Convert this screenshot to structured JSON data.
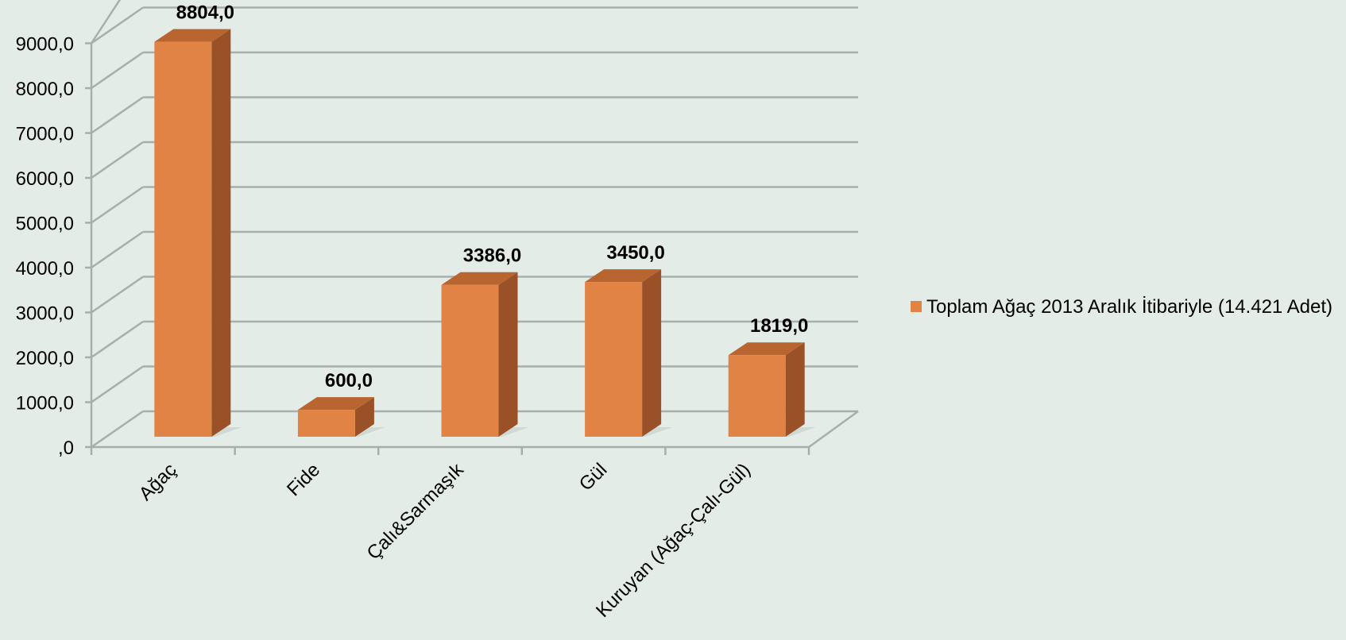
{
  "chart_data": {
    "type": "bar",
    "categories": [
      "Ağaç",
      "Fide",
      "Çalı&Sarmaşık",
      "Gül",
      "Kuruyan (Ağaç-Çalı-Gül)"
    ],
    "series": [
      {
        "name": "Toplam Ağaç 2013 Aralık İtibariyle (14.421 Adet)",
        "values": [
          8804.0,
          600.0,
          3386.0,
          3450.0,
          1819.0
        ],
        "value_labels": [
          "8804,0",
          "600,0",
          "3386,0",
          "3450,0",
          "1819,0"
        ],
        "color": "#e08345"
      }
    ],
    "yticks": [
      0,
      1000,
      2000,
      3000,
      4000,
      5000,
      6000,
      7000,
      8000,
      9000
    ],
    "ytick_labels": [
      ",0",
      "1000,0",
      "2000,0",
      "3000,0",
      "4000,0",
      "5000,0",
      "6000,0",
      "7000,0",
      "8000,0",
      "9000,0"
    ],
    "ylim": [
      0,
      9000
    ],
    "title": "",
    "xlabel": "",
    "ylabel": "",
    "grid": true,
    "legend_position": "right",
    "style": "3d-column"
  },
  "colors": {
    "background": "#e4ece8",
    "bar_front": "#e08345",
    "bar_side": "#9a5128",
    "bar_top": "#b8652f",
    "gridline": "#a8aeac"
  }
}
